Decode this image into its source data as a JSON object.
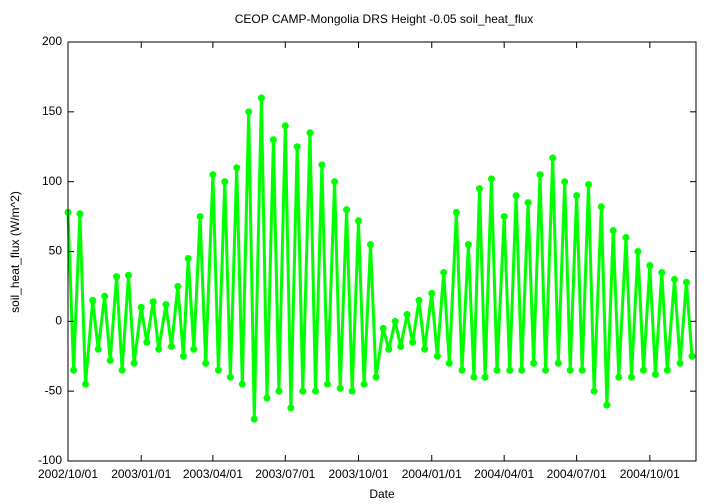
{
  "chart_data": {
    "type": "scatter",
    "title": "CEOP CAMP-Mongolia DRS Height -0.05 soil_heat_flux",
    "x_label": "Date",
    "y_label": "soil_heat_flux (W/m^2)",
    "xlim": [
      "2002/10/01",
      "2004/11/28"
    ],
    "xticks": [
      "2002/10/01",
      "2003/01/01",
      "2003/04/01",
      "2003/07/01",
      "2003/10/01",
      "2004/01/01",
      "2004/04/01",
      "2004/07/01",
      "2004/10/01"
    ],
    "ylim": [
      -100,
      200
    ],
    "yticks": [
      -100,
      -50,
      0,
      50,
      100,
      150,
      200
    ],
    "grid": false,
    "series": [
      {
        "name": "soil_heat_flux",
        "color": "#00ff00",
        "x": [
          "2002/10/01",
          "2002/10/08",
          "2002/10/16",
          "2002/10/23",
          "2002/11/01",
          "2002/11/08",
          "2002/11/16",
          "2002/11/23",
          "2002/12/01",
          "2002/12/08",
          "2002/12/16",
          "2002/12/23",
          "2003/01/01",
          "2003/01/08",
          "2003/01/16",
          "2003/01/23",
          "2003/02/01",
          "2003/02/08",
          "2003/02/16",
          "2003/02/23",
          "2003/03/01",
          "2003/03/08",
          "2003/03/16",
          "2003/03/23",
          "2003/04/01",
          "2003/04/08",
          "2003/04/16",
          "2003/04/23",
          "2003/05/01",
          "2003/05/08",
          "2003/05/16",
          "2003/05/23",
          "2003/06/01",
          "2003/06/08",
          "2003/06/16",
          "2003/06/23",
          "2003/07/01",
          "2003/07/08",
          "2003/07/16",
          "2003/07/23",
          "2003/08/01",
          "2003/08/08",
          "2003/08/16",
          "2003/08/23",
          "2003/09/01",
          "2003/09/08",
          "2003/09/16",
          "2003/09/23",
          "2003/10/01",
          "2003/10/08",
          "2003/10/16",
          "2003/10/23",
          "2003/11/01",
          "2003/11/08",
          "2003/11/16",
          "2003/11/23",
          "2003/12/01",
          "2003/12/08",
          "2003/12/16",
          "2003/12/23",
          "2004/01/01",
          "2004/01/08",
          "2004/01/16",
          "2004/01/23",
          "2004/02/01",
          "2004/02/08",
          "2004/02/16",
          "2004/02/23",
          "2004/03/01",
          "2004/03/08",
          "2004/03/16",
          "2004/03/23",
          "2004/04/01",
          "2004/04/08",
          "2004/04/16",
          "2004/04/23",
          "2004/05/01",
          "2004/05/08",
          "2004/05/16",
          "2004/05/23",
          "2004/06/01",
          "2004/06/08",
          "2004/06/16",
          "2004/06/23",
          "2004/07/01",
          "2004/07/08",
          "2004/07/16",
          "2004/07/23",
          "2004/08/01",
          "2004/08/08",
          "2004/08/16",
          "2004/08/23",
          "2004/09/01",
          "2004/09/08",
          "2004/09/16",
          "2004/09/23",
          "2004/10/01",
          "2004/10/08",
          "2004/10/16",
          "2004/10/23",
          "2004/11/01",
          "2004/11/08",
          "2004/11/16",
          "2004/11/23"
        ],
        "values": [
          78,
          -35,
          77,
          -45,
          15,
          -20,
          18,
          -28,
          32,
          -35,
          33,
          -30,
          10,
          -15,
          14,
          -20,
          12,
          -18,
          25,
          -25,
          45,
          -20,
          75,
          -30,
          105,
          -35,
          100,
          -40,
          110,
          -45,
          150,
          -70,
          160,
          -55,
          130,
          -50,
          140,
          -62,
          125,
          -50,
          135,
          -50,
          112,
          -45,
          100,
          -48,
          80,
          -50,
          72,
          -45,
          55,
          -40,
          -5,
          -20,
          0,
          -18,
          5,
          -15,
          15,
          -20,
          20,
          -25,
          35,
          -30,
          78,
          -35,
          55,
          -40,
          95,
          -40,
          102,
          -35,
          75,
          -35,
          90,
          -35,
          85,
          -30,
          105,
          -35,
          117,
          -30,
          100,
          -35,
          90,
          -35,
          98,
          -50,
          82,
          -60,
          65,
          -40,
          60,
          -40,
          50,
          -35,
          40,
          -38,
          35,
          -35,
          30,
          -30,
          28,
          -25
        ]
      }
    ]
  }
}
